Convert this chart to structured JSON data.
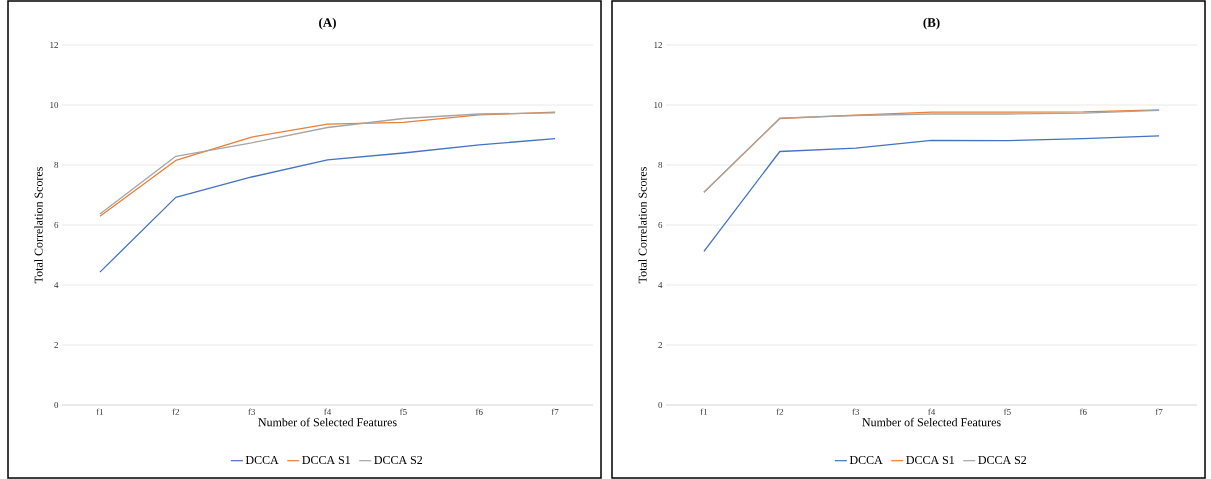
{
  "chart_data": [
    {
      "type": "line",
      "title": "(A)",
      "xlabel": "Number of Selected Features",
      "ylabel": "Total Correlation Scores",
      "categories": [
        "f1",
        "f2",
        "f3",
        "f4",
        "f5",
        "f6",
        "f7"
      ],
      "ylim": [
        0,
        12
      ],
      "yticks": [
        0,
        2,
        4,
        6,
        8,
        10,
        12
      ],
      "grid": "y",
      "legend": "bottom",
      "marker": "none",
      "series": [
        {
          "name": "DCCA",
          "color": "#4472c4",
          "values": [
            4.43,
            6.92,
            7.6,
            8.17,
            8.4,
            8.67,
            8.88
          ]
        },
        {
          "name": "DCCA S1",
          "color": "#ed7d31",
          "values": [
            6.29,
            8.15,
            8.93,
            9.36,
            9.42,
            9.67,
            9.76
          ]
        },
        {
          "name": "DCCA S2",
          "color": "#a5a5a5",
          "values": [
            6.37,
            8.29,
            8.74,
            9.25,
            9.55,
            9.7,
            9.74
          ]
        }
      ]
    },
    {
      "type": "line",
      "title": "(B)",
      "xlabel": "Number of Selected Features",
      "ylabel": "Total Correlation Scores",
      "categories": [
        "f1",
        "f2",
        "f3",
        "f4",
        "f5",
        "f6",
        "f7"
      ],
      "ylim": [
        0,
        12
      ],
      "yticks": [
        0,
        2,
        4,
        6,
        8,
        10,
        12
      ],
      "grid": "y",
      "legend": "bottom",
      "marker": "none",
      "series": [
        {
          "name": "DCCA",
          "color": "#4472c4",
          "values": [
            5.12,
            8.45,
            8.56,
            8.82,
            8.81,
            8.88,
            8.97
          ]
        },
        {
          "name": "DCCA S1",
          "color": "#ed7d31",
          "values": [
            7.09,
            9.55,
            9.66,
            9.76,
            9.76,
            9.77,
            9.84
          ]
        },
        {
          "name": "DCCA S2",
          "color": "#a5a5a5",
          "values": [
            7.09,
            9.56,
            9.65,
            9.7,
            9.7,
            9.73,
            9.82
          ]
        }
      ]
    }
  ]
}
